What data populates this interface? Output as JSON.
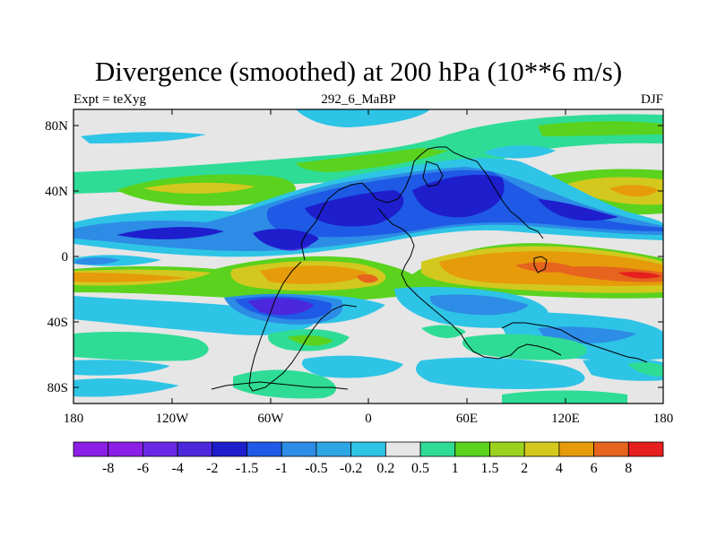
{
  "title": "Divergence (smoothed) at 200 hPa (10**6 m/s)",
  "left_string": "Expt = teXyg",
  "center_string": "292_6_MaBP",
  "right_string": "DJF",
  "lat_ticks": [
    "80N",
    "40N",
    "0",
    "40S",
    "80S"
  ],
  "lon_ticks": [
    "180",
    "120W",
    "60W",
    "0",
    "60E",
    "120E",
    "180"
  ],
  "colorbar": {
    "colors": [
      "#8c1ee6",
      "#6a28e6",
      "#4b28dc",
      "#1e1ecd",
      "#1e5ae6",
      "#2d8ce6",
      "#2ea6e6",
      "#2ec4e6",
      "#e6e6e6",
      "#2edc96",
      "#5ad21e",
      "#9bd21e",
      "#d2c81e",
      "#e69b0a",
      "#e6641e",
      "#e61e1e"
    ],
    "labels": [
      "-8",
      "-6",
      "-4",
      "-2",
      "-1.5",
      "-1",
      "-0.5",
      "-0.2",
      "0.2",
      "0.5",
      "1",
      "1.5",
      "2",
      "4",
      "6",
      "8"
    ]
  },
  "chart_data": {
    "type": "heatmap",
    "title": "Divergence (smoothed) at 200 hPa (10**6 m/s)",
    "xlabel": "",
    "ylabel": "",
    "xlim": [
      -180,
      180
    ],
    "ylim": [
      -90,
      90
    ],
    "contour_levels": [
      -8,
      -6,
      -4,
      -2,
      -1.5,
      -1,
      -0.5,
      -0.2,
      0.2,
      0.5,
      1,
      1.5,
      2,
      4,
      6,
      8
    ],
    "features": [
      {
        "lon": 145,
        "lat": 40,
        "value": 2
      },
      {
        "lon": -120,
        "lat": 38,
        "value": 1.5
      },
      {
        "lon": 40,
        "lat": 75,
        "value": 0.5
      },
      {
        "lon": -20,
        "lat": 30,
        "value": -2
      },
      {
        "lon": 70,
        "lat": 45,
        "value": -4
      },
      {
        "lon": 100,
        "lat": 25,
        "value": -2
      },
      {
        "lon": -60,
        "lat": 5,
        "value": -4
      },
      {
        "lon": -140,
        "lat": 0,
        "value": -2
      },
      {
        "lon": 100,
        "lat": -8,
        "value": 4
      },
      {
        "lon": 60,
        "lat": -5,
        "value": 2
      },
      {
        "lon": -160,
        "lat": -15,
        "value": 2
      },
      {
        "lon": -20,
        "lat": -15,
        "value": 4
      },
      {
        "lon": -70,
        "lat": -35,
        "value": -4
      },
      {
        "lon": 90,
        "lat": -45,
        "value": -1
      },
      {
        "lon": -60,
        "lat": -60,
        "value": 1
      }
    ]
  }
}
